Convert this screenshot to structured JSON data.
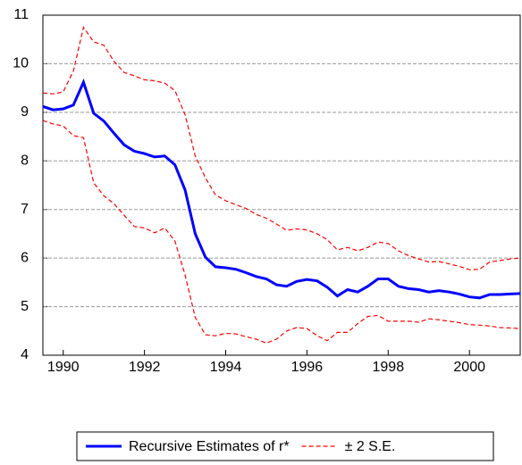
{
  "chart_data": {
    "type": "line",
    "x": [
      1989.5,
      1989.75,
      1990,
      1990.25,
      1990.5,
      1990.75,
      1991,
      1991.25,
      1991.5,
      1991.75,
      1992,
      1992.25,
      1992.5,
      1992.75,
      1993,
      1993.25,
      1993.5,
      1993.75,
      1994,
      1994.25,
      1994.5,
      1994.75,
      1995,
      1995.25,
      1995.5,
      1995.75,
      1996,
      1996.25,
      1996.5,
      1996.75,
      1997,
      1997.25,
      1997.5,
      1997.75,
      1998,
      1998.25,
      1998.5,
      1998.75,
      1999,
      1999.25,
      1999.5,
      1999.75,
      2000,
      2000.25,
      2000.5,
      2000.75,
      2001,
      2001.25
    ],
    "series": [
      {
        "name": "Recursive Estimates of r*",
        "color": "#0000ff",
        "values": [
          9.12,
          9.05,
          9.07,
          9.15,
          9.62,
          8.98,
          8.82,
          8.57,
          8.33,
          8.2,
          8.15,
          8.08,
          8.1,
          7.92,
          7.4,
          6.5,
          6.02,
          5.82,
          5.8,
          5.77,
          5.7,
          5.62,
          5.57,
          5.45,
          5.42,
          5.52,
          5.56,
          5.53,
          5.4,
          5.22,
          5.35,
          5.3,
          5.42,
          5.57,
          5.57,
          5.42,
          5.37,
          5.35,
          5.3,
          5.33,
          5.3,
          5.26,
          5.2,
          5.18,
          5.25,
          5.25,
          5.26,
          5.27
        ]
      },
      {
        "name": "± 2 S.E.",
        "color": "#ff0000",
        "upper": [
          9.4,
          9.38,
          9.42,
          9.85,
          10.75,
          10.45,
          10.38,
          10.05,
          9.82,
          9.75,
          9.67,
          9.65,
          9.6,
          9.45,
          8.95,
          8.1,
          7.65,
          7.3,
          7.18,
          7.1,
          7.02,
          6.9,
          6.82,
          6.7,
          6.57,
          6.6,
          6.58,
          6.5,
          6.38,
          6.17,
          6.22,
          6.15,
          6.22,
          6.33,
          6.3,
          6.15,
          6.05,
          5.98,
          5.92,
          5.93,
          5.88,
          5.83,
          5.76,
          5.77,
          5.92,
          5.95,
          5.98,
          6.0
        ],
        "lower": [
          8.83,
          8.76,
          8.72,
          8.52,
          8.48,
          7.55,
          7.28,
          7.12,
          6.88,
          6.65,
          6.62,
          6.52,
          6.62,
          6.35,
          5.65,
          4.78,
          4.42,
          4.4,
          4.45,
          4.44,
          4.38,
          4.33,
          4.25,
          4.33,
          4.5,
          4.57,
          4.55,
          4.4,
          4.3,
          4.47,
          4.47,
          4.65,
          4.8,
          4.82,
          4.7,
          4.7,
          4.7,
          4.68,
          4.75,
          4.73,
          4.7,
          4.67,
          4.63,
          4.62,
          4.6,
          4.57,
          4.56,
          4.55
        ]
      }
    ],
    "xlim": [
      1989.5,
      2001.25
    ],
    "xticks": [
      1990,
      1992,
      1994,
      1996,
      1998,
      2000
    ],
    "ylim": [
      4,
      11
    ],
    "yticks": [
      4,
      5,
      6,
      7,
      8,
      9,
      10,
      11
    ],
    "grid": true,
    "legend": "bottom"
  }
}
